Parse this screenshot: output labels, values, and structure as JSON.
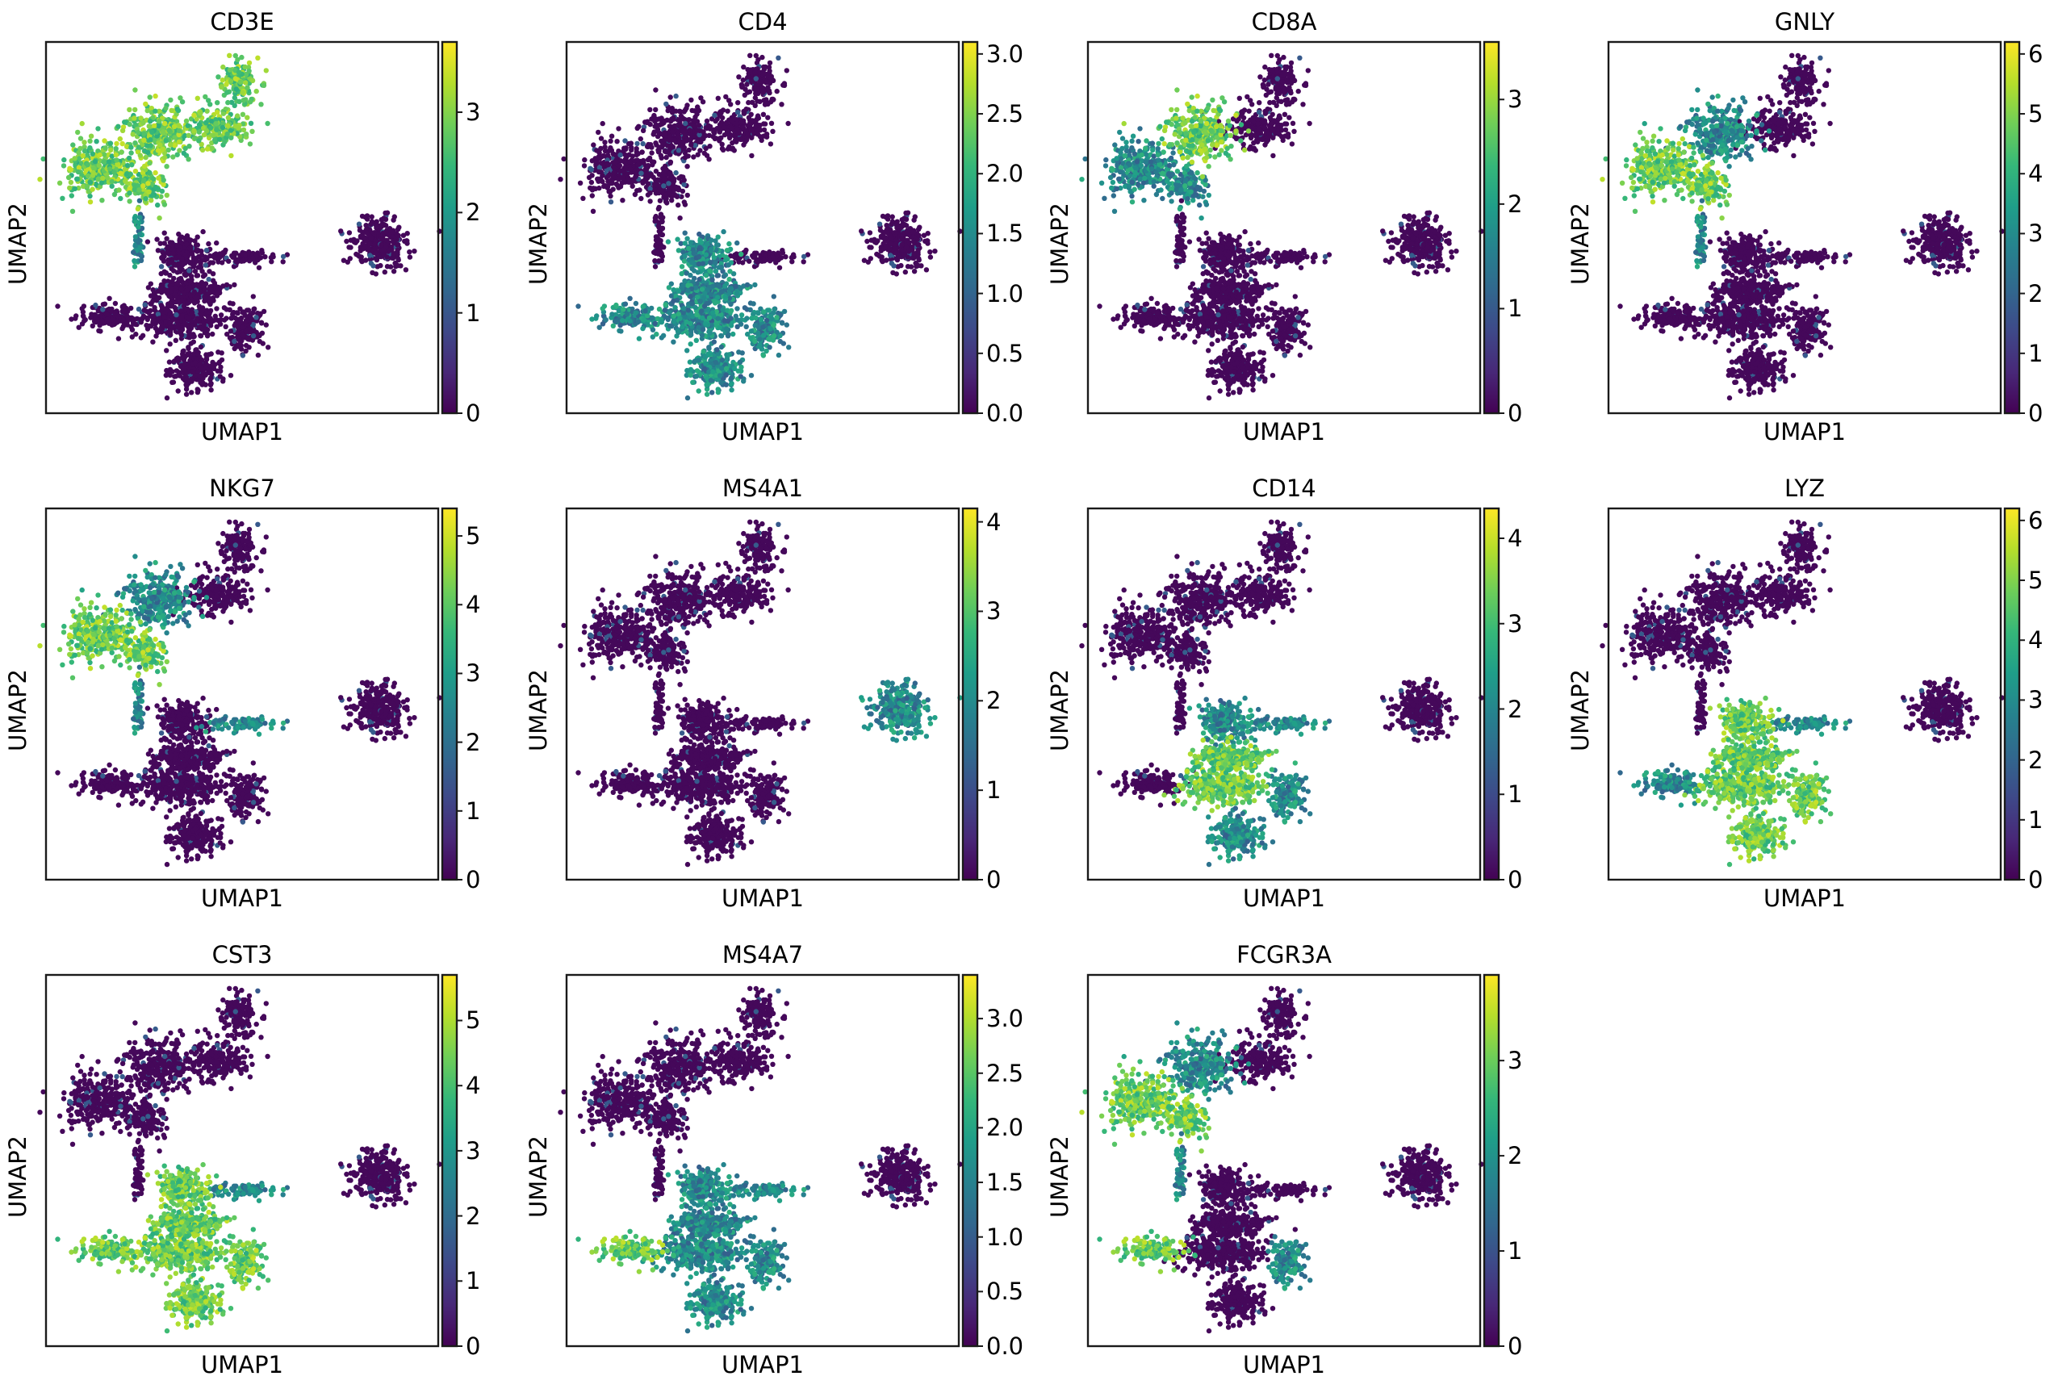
{
  "figure": {
    "colormap": "viridis",
    "viridis_stops": [
      "#440154",
      "#482878",
      "#3e4989",
      "#31688e",
      "#26828e",
      "#1f9e89",
      "#35b779",
      "#6ece58",
      "#b5de2b",
      "#fde725"
    ],
    "axis_frame_color": "#1a1a1a"
  },
  "chart_data": [
    {
      "type": "scatter",
      "title": "CD3E",
      "xlabel": "UMAP1",
      "ylabel": "UMAP2",
      "color_range": [
        0,
        3.7
      ],
      "colorbar_ticks": [
        "0",
        "1",
        "2",
        "3"
      ],
      "colorbar_tick_values": [
        0,
        1,
        2,
        3
      ],
      "high_clusters": [
        "tcell_upper",
        "tcell_left",
        "tcell_mid",
        "tcell_right",
        "tcell_top"
      ],
      "mid_clusters": [
        "stalk"
      ],
      "low_clusters": [
        "left_blob",
        "mono_a",
        "mono_b",
        "mono_c",
        "mono_d",
        "dc",
        "bcell",
        "platelet_arm"
      ]
    },
    {
      "type": "scatter",
      "title": "CD4",
      "xlabel": "UMAP1",
      "ylabel": "UMAP2",
      "color_range": [
        0,
        3.1
      ],
      "colorbar_ticks": [
        "0.0",
        "0.5",
        "1.0",
        "1.5",
        "2.0",
        "2.5",
        "3.0"
      ],
      "colorbar_tick_values": [
        0,
        0.5,
        1.0,
        1.5,
        2.0,
        2.5,
        3.0
      ],
      "high_clusters": [],
      "mid_clusters": [
        "mono_a",
        "mono_b",
        "mono_c",
        "mono_d",
        "left_blob",
        "dc"
      ],
      "low_clusters": [
        "tcell_upper",
        "tcell_left",
        "tcell_mid",
        "tcell_right",
        "tcell_top",
        "bcell",
        "stalk",
        "platelet_arm"
      ]
    },
    {
      "type": "scatter",
      "title": "CD8A",
      "xlabel": "UMAP1",
      "ylabel": "UMAP2",
      "color_range": [
        0,
        3.55
      ],
      "colorbar_ticks": [
        "0",
        "1",
        "2",
        "3"
      ],
      "colorbar_tick_values": [
        0,
        1,
        2,
        3
      ],
      "high_clusters": [
        "tcell_upper"
      ],
      "mid_clusters": [
        "tcell_left",
        "tcell_mid"
      ],
      "low_clusters": [
        "tcell_right",
        "tcell_top",
        "stalk",
        "left_blob",
        "mono_a",
        "mono_b",
        "mono_c",
        "mono_d",
        "dc",
        "bcell",
        "platelet_arm"
      ]
    },
    {
      "type": "scatter",
      "title": "GNLY",
      "xlabel": "UMAP1",
      "ylabel": "UMAP2",
      "color_range": [
        0,
        6.2
      ],
      "colorbar_ticks": [
        "0",
        "1",
        "2",
        "3",
        "4",
        "5",
        "6"
      ],
      "colorbar_tick_values": [
        0,
        1,
        2,
        3,
        4,
        5,
        6
      ],
      "high_clusters": [
        "tcell_left",
        "tcell_mid"
      ],
      "mid_clusters": [
        "tcell_upper",
        "stalk"
      ],
      "low_clusters": [
        "tcell_right",
        "tcell_top",
        "left_blob",
        "mono_a",
        "mono_b",
        "mono_c",
        "mono_d",
        "dc",
        "bcell",
        "platelet_arm"
      ]
    },
    {
      "type": "scatter",
      "title": "NKG7",
      "xlabel": "UMAP1",
      "ylabel": "UMAP2",
      "color_range": [
        0,
        5.4
      ],
      "colorbar_ticks": [
        "0",
        "1",
        "2",
        "3",
        "4",
        "5"
      ],
      "colorbar_tick_values": [
        0,
        1,
        2,
        3,
        4,
        5
      ],
      "high_clusters": [
        "tcell_left",
        "tcell_mid"
      ],
      "mid_clusters": [
        "tcell_upper",
        "stalk",
        "platelet_arm"
      ],
      "low_clusters": [
        "tcell_right",
        "tcell_top",
        "left_blob",
        "mono_a",
        "mono_b",
        "mono_c",
        "mono_d",
        "dc",
        "bcell"
      ]
    },
    {
      "type": "scatter",
      "title": "MS4A1",
      "xlabel": "UMAP1",
      "ylabel": "UMAP2",
      "color_range": [
        0,
        4.15
      ],
      "colorbar_ticks": [
        "0",
        "1",
        "2",
        "3",
        "4"
      ],
      "colorbar_tick_values": [
        0,
        1,
        2,
        3,
        4
      ],
      "high_clusters": [],
      "mid_clusters": [
        "bcell"
      ],
      "low_clusters": [
        "tcell_upper",
        "tcell_left",
        "tcell_mid",
        "tcell_right",
        "tcell_top",
        "stalk",
        "left_blob",
        "mono_a",
        "mono_b",
        "mono_c",
        "mono_d",
        "dc",
        "platelet_arm"
      ]
    },
    {
      "type": "scatter",
      "title": "CD14",
      "xlabel": "UMAP1",
      "ylabel": "UMAP2",
      "color_range": [
        0,
        4.35
      ],
      "colorbar_ticks": [
        "0",
        "1",
        "2",
        "3",
        "4"
      ],
      "colorbar_tick_values": [
        0,
        1,
        2,
        3,
        4
      ],
      "high_clusters": [
        "mono_b",
        "dc"
      ],
      "mid_clusters": [
        "mono_a",
        "mono_c",
        "mono_d",
        "platelet_arm"
      ],
      "low_clusters": [
        "tcell_upper",
        "tcell_left",
        "tcell_mid",
        "tcell_right",
        "tcell_top",
        "stalk",
        "left_blob",
        "bcell"
      ]
    },
    {
      "type": "scatter",
      "title": "LYZ",
      "xlabel": "UMAP1",
      "ylabel": "UMAP2",
      "color_range": [
        0,
        6.2
      ],
      "colorbar_ticks": [
        "0",
        "1",
        "2",
        "3",
        "4",
        "5",
        "6"
      ],
      "colorbar_tick_values": [
        0,
        1,
        2,
        3,
        4,
        5,
        6
      ],
      "high_clusters": [
        "mono_a",
        "mono_b",
        "mono_c",
        "mono_d",
        "dc"
      ],
      "mid_clusters": [
        "left_blob",
        "platelet_arm"
      ],
      "low_clusters": [
        "tcell_upper",
        "tcell_left",
        "tcell_mid",
        "tcell_right",
        "tcell_top",
        "stalk",
        "bcell"
      ]
    },
    {
      "type": "scatter",
      "title": "CST3",
      "xlabel": "UMAP1",
      "ylabel": "UMAP2",
      "color_range": [
        0,
        5.7
      ],
      "colorbar_ticks": [
        "0",
        "1",
        "2",
        "3",
        "4",
        "5"
      ],
      "colorbar_tick_values": [
        0,
        1,
        2,
        3,
        4,
        5
      ],
      "high_clusters": [
        "left_blob",
        "mono_a",
        "mono_b",
        "mono_c",
        "mono_d",
        "dc"
      ],
      "mid_clusters": [
        "platelet_arm"
      ],
      "low_clusters": [
        "tcell_upper",
        "tcell_left",
        "tcell_mid",
        "tcell_right",
        "tcell_top",
        "stalk",
        "bcell"
      ]
    },
    {
      "type": "scatter",
      "title": "MS4A7",
      "xlabel": "UMAP1",
      "ylabel": "UMAP2",
      "color_range": [
        0,
        3.4
      ],
      "colorbar_ticks": [
        "0.0",
        "0.5",
        "1.0",
        "1.5",
        "2.0",
        "2.5",
        "3.0"
      ],
      "colorbar_tick_values": [
        0,
        0.5,
        1.0,
        1.5,
        2.0,
        2.5,
        3.0
      ],
      "high_clusters": [
        "left_blob"
      ],
      "mid_clusters": [
        "mono_a",
        "mono_b",
        "mono_c",
        "mono_d",
        "dc",
        "platelet_arm"
      ],
      "low_clusters": [
        "tcell_upper",
        "tcell_left",
        "tcell_mid",
        "tcell_right",
        "tcell_top",
        "stalk",
        "bcell"
      ]
    },
    {
      "type": "scatter",
      "title": "FCGR3A",
      "xlabel": "UMAP1",
      "ylabel": "UMAP2",
      "color_range": [
        0,
        3.9
      ],
      "colorbar_ticks": [
        "0",
        "1",
        "2",
        "3"
      ],
      "colorbar_tick_values": [
        0,
        1,
        2,
        3
      ],
      "high_clusters": [
        "left_blob",
        "tcell_left",
        "tcell_mid"
      ],
      "mid_clusters": [
        "tcell_upper",
        "stalk",
        "mono_c"
      ],
      "low_clusters": [
        "tcell_right",
        "tcell_top",
        "mono_a",
        "mono_b",
        "mono_d",
        "dc",
        "bcell",
        "platelet_arm"
      ]
    }
  ]
}
